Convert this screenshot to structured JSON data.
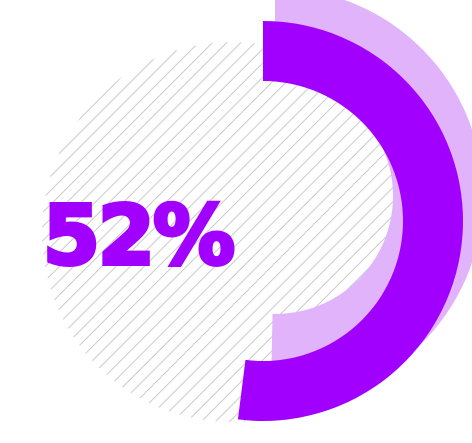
{
  "chart_data": {
    "type": "pie",
    "slices": [
      {
        "label": "52%",
        "value": 52
      },
      {
        "label": "",
        "value": 48
      }
    ],
    "data_labels": [
      "52%"
    ],
    "colors": {
      "primary": "#A100FF",
      "shadow": "#E1B3FB",
      "hatch": "#BDBDBD",
      "background": "#FFFFFF"
    }
  }
}
